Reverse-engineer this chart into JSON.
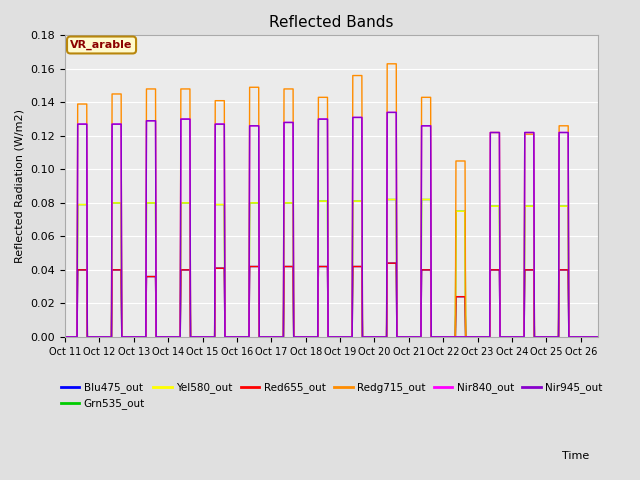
{
  "title": "Reflected Bands",
  "xlabel": "Time",
  "ylabel": "Reflected Radiation (W/m2)",
  "annotation": "VR_arable",
  "ylim": [
    0,
    0.18
  ],
  "series_order": [
    "Blu475_out",
    "Grn535_out",
    "Yel580_out",
    "Red655_out",
    "Redg715_out",
    "Nir840_out",
    "Nir945_out"
  ],
  "series_colors": {
    "Blu475_out": "#0000FF",
    "Grn535_out": "#00CC00",
    "Yel580_out": "#FFFF00",
    "Red655_out": "#FF0000",
    "Redg715_out": "#FF8C00",
    "Nir840_out": "#FF00FF",
    "Nir945_out": "#8800CC"
  },
  "lw": 1.0,
  "n_days": 16,
  "pts_per_day": 288,
  "peaks": {
    "Blu475_out": [
      0.04,
      0.04,
      0.036,
      0.04,
      0.041,
      0.042,
      0.042,
      0.042,
      0.042,
      0.044,
      0.04,
      0.024,
      0.04,
      0.04,
      0.04,
      0.0
    ],
    "Grn535_out": [
      0.079,
      0.08,
      0.08,
      0.08,
      0.079,
      0.08,
      0.08,
      0.081,
      0.081,
      0.082,
      0.082,
      0.075,
      0.078,
      0.078,
      0.078,
      0.0
    ],
    "Yel580_out": [
      0.079,
      0.08,
      0.08,
      0.08,
      0.079,
      0.08,
      0.08,
      0.081,
      0.081,
      0.082,
      0.082,
      0.075,
      0.078,
      0.078,
      0.078,
      0.0
    ],
    "Red655_out": [
      0.04,
      0.04,
      0.036,
      0.04,
      0.041,
      0.042,
      0.042,
      0.042,
      0.042,
      0.044,
      0.04,
      0.024,
      0.04,
      0.04,
      0.04,
      0.0
    ],
    "Redg715_out": [
      0.139,
      0.145,
      0.148,
      0.148,
      0.141,
      0.149,
      0.148,
      0.143,
      0.156,
      0.163,
      0.143,
      0.105,
      0.122,
      0.121,
      0.126,
      0.0
    ],
    "Nir840_out": [
      0.127,
      0.127,
      0.129,
      0.13,
      0.127,
      0.126,
      0.128,
      0.13,
      0.131,
      0.134,
      0.126,
      0.0,
      0.122,
      0.122,
      0.122,
      0.0
    ],
    "Nir945_out": [
      0.127,
      0.127,
      0.129,
      0.13,
      0.127,
      0.126,
      0.128,
      0.13,
      0.131,
      0.134,
      0.126,
      0.0,
      0.122,
      0.122,
      0.122,
      0.0
    ]
  },
  "bg_color": "#e0e0e0",
  "plot_bg": "#ebebeb",
  "grid_color": "#ffffff",
  "yticks": [
    0.0,
    0.02,
    0.04,
    0.06,
    0.08,
    0.1,
    0.12,
    0.14,
    0.16,
    0.18
  ],
  "start_day": 11,
  "end_day": 26,
  "legend_ncol": 6
}
